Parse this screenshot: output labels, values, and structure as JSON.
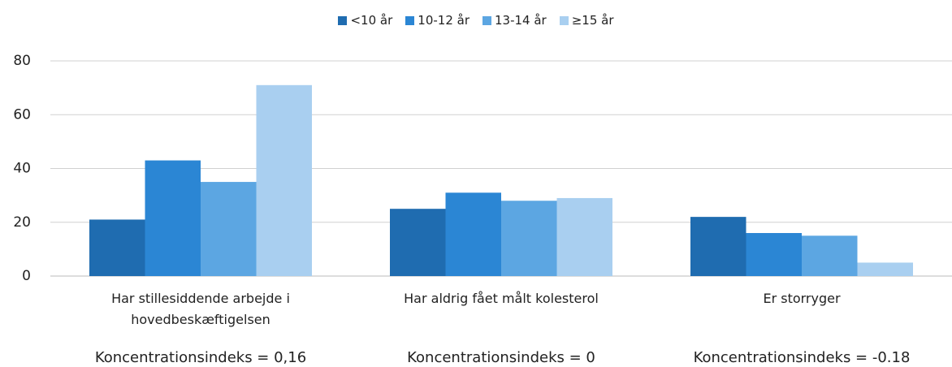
{
  "chart_data": {
    "type": "bar",
    "categories": [
      "Har stillesiddende arbejde i hovedbeskæftigelsen",
      "Har aldrig fået målt kolesterol",
      "Er storryger"
    ],
    "series": [
      {
        "name": "<10 år",
        "color": "#1f6cb0",
        "values": [
          21,
          25,
          22
        ]
      },
      {
        "name": "10-12 år",
        "color": "#2b86d4",
        "values": [
          43,
          31,
          16
        ]
      },
      {
        "name": "13-14 år",
        "color": "#5ca6e2",
        "values": [
          35,
          28,
          15
        ]
      },
      {
        "name": "≥15 år",
        "color": "#a9cff0",
        "values": [
          71,
          29,
          5
        ]
      }
    ],
    "annotations": [
      "Koncentrationsindeks = 0,16",
      "Koncentrationsindeks = 0",
      "Koncentrationsindeks = -0.18"
    ],
    "ylim": [
      0,
      80
    ],
    "yticks": [
      0,
      20,
      40,
      60,
      80
    ],
    "grid": true,
    "legend": "top"
  }
}
